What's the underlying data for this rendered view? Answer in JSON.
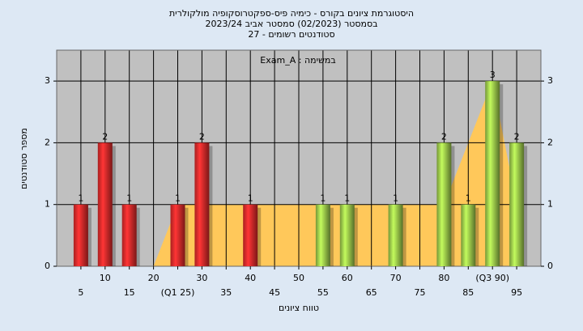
{
  "chart_data": {
    "type": "histogram",
    "title": [
      "היסטוגרמת ציונים בקורס - כימיה פיס-ספקטרוסקופיה מולקולרית",
      "בסמסטר  (02/2023)  סמסטר אביב 2023/24",
      "סטודנטים רשומים - 27"
    ],
    "annotation": "במשימה : Exam_A",
    "x_label": "טווח ציונים",
    "y_label": "מספר סטודנטים",
    "x": [
      5,
      10,
      15,
      25,
      30,
      40,
      55,
      60,
      70,
      80,
      85,
      90,
      95
    ],
    "values": [
      1,
      2,
      1,
      1,
      2,
      1,
      1,
      1,
      1,
      2,
      1,
      3,
      2
    ],
    "colors": [
      "#e02a2a",
      "#e02a2a",
      "#e02a2a",
      "#e02a2a",
      "#e02a2a",
      "#e02a2a",
      "#9cc94a",
      "#9cc94a",
      "#9cc94a",
      "#9cc94a",
      "#9cc94a",
      "#9cc94a",
      "#9cc94a"
    ],
    "area": {
      "x": [
        20,
        25,
        80,
        90,
        95
      ],
      "values": [
        0,
        1,
        1,
        3,
        1
      ],
      "color": "#ffc85a"
    },
    "xlim": [
      0,
      100
    ],
    "xticks": [
      5,
      10,
      15,
      20,
      {
        "value": 25,
        "label": "(Q1 25)"
      },
      30,
      35,
      40,
      45,
      50,
      55,
      60,
      65,
      70,
      75,
      80,
      85,
      {
        "value": 90,
        "label": "(Q3 90)"
      },
      95
    ],
    "ylim": [
      0,
      3.5
    ],
    "yticks": [
      0,
      1,
      2,
      3
    ],
    "y2lim": [
      0,
      3.5
    ],
    "y2ticks": [
      0,
      1,
      2,
      3
    ],
    "grid": true
  }
}
